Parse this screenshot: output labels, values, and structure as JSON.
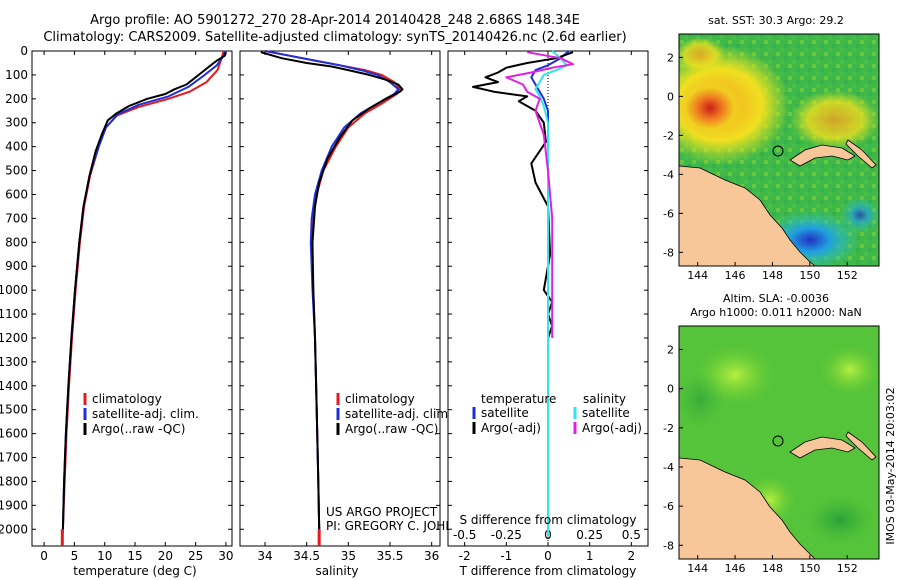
{
  "title": {
    "line1": "Argo profile: AO 5901272_270 28-Apr-2014 20140428_248 2.686S 148.34E",
    "line2": "Climatology: CARS2009. Satellite-adjusted climatology: synTS_20140426.nc (2.6d earlier)"
  },
  "credit": {
    "line1": "US ARGO PROJECT",
    "line2": "PI: GREGORY C. JOHNSON"
  },
  "timestamp": "IMOS 03-May-2014 20:03:02",
  "colors": {
    "clim": "#e41a1c",
    "sat": "#1f2fd8",
    "argo": "#000000",
    "sal_sat": "#2ee6f0",
    "sal_argo": "#e020e0",
    "land": "#f7c79a"
  },
  "chart_data": [
    {
      "type": "line",
      "id": "temperature",
      "xlabel": "temperature (deg C)",
      "ylabel": "",
      "xlim": [
        -2,
        31
      ],
      "ylim": [
        0,
        2070
      ],
      "xticks": [
        0,
        5,
        10,
        15,
        20,
        25,
        30
      ],
      "yticks": [
        0,
        100,
        200,
        300,
        400,
        500,
        600,
        700,
        800,
        900,
        1000,
        1100,
        1200,
        1300,
        1400,
        1500,
        1600,
        1700,
        1800,
        1900,
        2000
      ],
      "legend": [
        "climatology",
        "satellite-adj. clim.",
        "Argo(..raw -QC)"
      ],
      "series": [
        {
          "name": "climatology",
          "color_key": "clim",
          "points": [
            [
              29.6,
              0
            ],
            [
              29.3,
              30
            ],
            [
              28.6,
              80
            ],
            [
              26.8,
              130
            ],
            [
              24.0,
              170
            ],
            [
              20.5,
              200
            ],
            [
              15.5,
              235
            ],
            [
              12.0,
              270
            ],
            [
              10.2,
              320
            ],
            [
              9.0,
              400
            ],
            [
              7.6,
              520
            ],
            [
              6.6,
              650
            ],
            [
              5.9,
              800
            ],
            [
              5.2,
              1000
            ],
            [
              4.6,
              1200
            ],
            [
              4.1,
              1400
            ],
            [
              3.7,
              1600
            ],
            [
              3.4,
              1800
            ],
            [
              3.1,
              2000
            ],
            [
              3.0,
              2040
            ]
          ]
        },
        {
          "name": "satellite-adj. clim.",
          "color_key": "sat",
          "points": [
            [
              29.9,
              0
            ],
            [
              29.6,
              20
            ],
            [
              28.5,
              60
            ],
            [
              26.5,
              100
            ],
            [
              23.8,
              150
            ],
            [
              20.5,
              190
            ],
            [
              15.6,
              225
            ],
            [
              12.1,
              265
            ],
            [
              10.2,
              320
            ],
            [
              9.0,
              400
            ],
            [
              7.5,
              520
            ],
            [
              6.5,
              650
            ],
            [
              5.8,
              800
            ],
            [
              5.1,
              1000
            ],
            [
              4.5,
              1200
            ],
            [
              4.0,
              1400
            ],
            [
              3.6,
              1600
            ],
            [
              3.3,
              1800
            ],
            [
              3.1,
              2000
            ],
            [
              3.0,
              2030
            ]
          ]
        },
        {
          "name": "Argo(..raw -QC)",
          "color_key": "argo",
          "points": [
            [
              30.0,
              5
            ],
            [
              29.8,
              20
            ],
            [
              28.5,
              40
            ],
            [
              27.5,
              60
            ],
            [
              26.5,
              80
            ],
            [
              25.5,
              100
            ],
            [
              24.5,
              120
            ],
            [
              23.5,
              140
            ],
            [
              21.5,
              160
            ],
            [
              20.0,
              180
            ],
            [
              17.0,
              200
            ],
            [
              14.0,
              230
            ],
            [
              12.0,
              260
            ],
            [
              10.5,
              290
            ],
            [
              9.5,
              350
            ],
            [
              8.5,
              420
            ],
            [
              7.5,
              520
            ],
            [
              6.5,
              650
            ],
            [
              5.8,
              800
            ],
            [
              5.1,
              1000
            ],
            [
              4.5,
              1200
            ],
            [
              4.0,
              1400
            ],
            [
              3.6,
              1600
            ],
            [
              3.3,
              1800
            ],
            [
              3.1,
              2000
            ]
          ]
        }
      ]
    },
    {
      "type": "line",
      "id": "salinity",
      "xlabel": "salinity",
      "ylabel": "",
      "xlim": [
        33.7,
        36.1
      ],
      "ylim": [
        0,
        2070
      ],
      "xticks": [
        34,
        34.5,
        35,
        35.5,
        36
      ],
      "legend": [
        "climatology",
        "satellite-adj. clim.",
        "Argo(..raw -QC)"
      ],
      "series": [
        {
          "name": "climatology",
          "color_key": "clim",
          "points": [
            [
              34.0,
              0
            ],
            [
              34.3,
              20
            ],
            [
              34.6,
              40
            ],
            [
              34.9,
              60
            ],
            [
              35.2,
              80
            ],
            [
              35.4,
              100
            ],
            [
              35.55,
              130
            ],
            [
              35.62,
              160
            ],
            [
              35.58,
              180
            ],
            [
              35.4,
              220
            ],
            [
              35.2,
              260
            ],
            [
              35.0,
              320
            ],
            [
              34.85,
              400
            ],
            [
              34.7,
              500
            ],
            [
              34.62,
              600
            ],
            [
              34.58,
              700
            ],
            [
              34.56,
              800
            ],
            [
              34.58,
              1000
            ],
            [
              34.6,
              1200
            ],
            [
              34.62,
              1500
            ],
            [
              34.64,
              1800
            ],
            [
              34.65,
              2000
            ],
            [
              34.65,
              2040
            ]
          ]
        },
        {
          "name": "satellite-adj. clim.",
          "color_key": "sat",
          "points": [
            [
              34.0,
              0
            ],
            [
              34.3,
              20
            ],
            [
              34.6,
              40
            ],
            [
              34.9,
              60
            ],
            [
              35.15,
              80
            ],
            [
              35.35,
              100
            ],
            [
              35.5,
              130
            ],
            [
              35.6,
              160
            ],
            [
              35.55,
              180
            ],
            [
              35.35,
              220
            ],
            [
              35.15,
              260
            ],
            [
              34.95,
              320
            ],
            [
              34.8,
              400
            ],
            [
              34.68,
              500
            ],
            [
              34.6,
              600
            ],
            [
              34.56,
              700
            ],
            [
              34.55,
              800
            ],
            [
              34.57,
              1000
            ],
            [
              34.6,
              1200
            ],
            [
              34.62,
              1500
            ],
            [
              34.64,
              1800
            ],
            [
              34.65,
              2000
            ],
            [
              34.65,
              2030
            ]
          ]
        },
        {
          "name": "Argo(..raw -QC)",
          "color_key": "argo",
          "points": [
            [
              33.95,
              5
            ],
            [
              34.2,
              30
            ],
            [
              34.5,
              50
            ],
            [
              34.8,
              65
            ],
            [
              35.0,
              80
            ],
            [
              35.25,
              100
            ],
            [
              35.45,
              120
            ],
            [
              35.6,
              140
            ],
            [
              35.65,
              160
            ],
            [
              35.62,
              170
            ],
            [
              35.45,
              200
            ],
            [
              35.25,
              240
            ],
            [
              35.05,
              290
            ],
            [
              34.9,
              360
            ],
            [
              34.75,
              450
            ],
            [
              34.65,
              550
            ],
            [
              34.6,
              650
            ],
            [
              34.57,
              800
            ],
            [
              34.58,
              1000
            ],
            [
              34.6,
              1200
            ],
            [
              34.62,
              1500
            ],
            [
              34.64,
              1800
            ],
            [
              34.65,
              2000
            ]
          ]
        }
      ]
    },
    {
      "type": "line",
      "id": "difference",
      "xlabel": "T difference from climatology",
      "xlabel_top": "S difference from climatology",
      "xlim": [
        -2.4,
        2.4
      ],
      "ylim": [
        0,
        2070
      ],
      "xticks": [
        -2,
        -1,
        0,
        1,
        2
      ],
      "xticks_top": [
        -0.5,
        -0.25,
        0,
        0.25,
        0.5
      ],
      "legend_titles": [
        "temperature",
        "salinity"
      ],
      "legend": [
        "satellite",
        "Argo(-adj)",
        "satellite",
        "Argo(-adj)"
      ],
      "series": [
        {
          "name": "temperature satellite",
          "color_key": "sat",
          "points": [
            [
              0.5,
              0
            ],
            [
              0.3,
              30
            ],
            [
              0.0,
              60
            ],
            [
              -0.3,
              80
            ],
            [
              -0.4,
              110
            ],
            [
              -0.3,
              140
            ],
            [
              -0.2,
              170
            ],
            [
              -0.1,
              200
            ],
            [
              0.0,
              250
            ],
            [
              0.0,
              400
            ],
            [
              0.0,
              2030
            ]
          ]
        },
        {
          "name": "temperature Argo(-adj)",
          "color_key": "argo",
          "points": [
            [
              0.6,
              5
            ],
            [
              0.2,
              30
            ],
            [
              -0.5,
              50
            ],
            [
              -1.0,
              70
            ],
            [
              -1.2,
              90
            ],
            [
              -1.5,
              110
            ],
            [
              -1.2,
              130
            ],
            [
              -1.8,
              150
            ],
            [
              -1.3,
              170
            ],
            [
              -0.5,
              190
            ],
            [
              -0.7,
              210
            ],
            [
              -0.3,
              250
            ],
            [
              -0.1,
              300
            ],
            [
              -0.05,
              380
            ],
            [
              -0.4,
              470
            ],
            [
              -0.3,
              550
            ],
            [
              0.0,
              650
            ],
            [
              0.05,
              850
            ],
            [
              -0.1,
              1000
            ],
            [
              0.1,
              1050
            ],
            [
              0.0,
              1100
            ],
            [
              0.1,
              1150
            ],
            [
              0.0,
              1200
            ],
            [
              0.0,
              2000
            ]
          ]
        },
        {
          "name": "salinity satellite",
          "color_key": "sal_sat",
          "points": [
            [
              0.1,
              0
            ],
            [
              0.3,
              30
            ],
            [
              0.45,
              60
            ],
            [
              0.2,
              80
            ],
            [
              -0.1,
              100
            ],
            [
              -0.2,
              130
            ],
            [
              -0.3,
              160
            ],
            [
              -0.2,
              190
            ],
            [
              -0.1,
              230
            ],
            [
              0.0,
              300
            ],
            [
              0.0,
              2030
            ]
          ]
        },
        {
          "name": "salinity Argo(-adj)",
          "color_key": "sal_argo",
          "points": [
            [
              -0.5,
              5
            ],
            [
              0.3,
              30
            ],
            [
              0.6,
              55
            ],
            [
              0.1,
              70
            ],
            [
              -0.4,
              90
            ],
            [
              -1.0,
              110
            ],
            [
              -0.6,
              140
            ],
            [
              -0.5,
              170
            ],
            [
              -0.2,
              200
            ],
            [
              -0.3,
              250
            ],
            [
              -0.1,
              350
            ],
            [
              0.0,
              500
            ],
            [
              0.1,
              700
            ],
            [
              0.1,
              1000
            ],
            [
              0.1,
              1200
            ]
          ]
        }
      ]
    },
    {
      "type": "heatmap",
      "id": "sst_map",
      "title": "sat. SST: 30.3 Argo: 29.2",
      "xlim": [
        143,
        153.7
      ],
      "ylim": [
        -8.7,
        3.2
      ],
      "xticks": [
        144,
        146,
        148,
        150,
        152
      ],
      "yticks": [
        2,
        0,
        -2,
        -4,
        -6,
        -8
      ],
      "profile_lon": 148.34,
      "profile_lat": -2.686
    },
    {
      "type": "heatmap",
      "id": "sla_map",
      "title_line1": "Altim. SLA: -0.0036",
      "title_line2": "Argo h1000: 0.011 h2000: NaN",
      "xlim": [
        143,
        153.7
      ],
      "ylim": [
        -8.7,
        3.2
      ],
      "xticks": [
        144,
        146,
        148,
        150,
        152
      ],
      "yticks": [
        2,
        0,
        -2,
        -4,
        -6,
        -8
      ],
      "profile_lon": 148.34,
      "profile_lat": -2.686
    }
  ]
}
